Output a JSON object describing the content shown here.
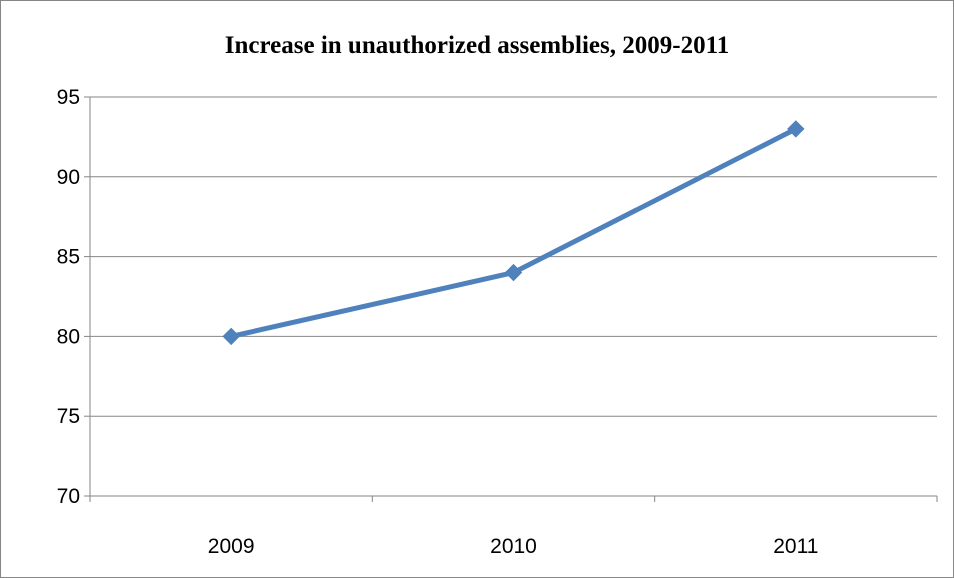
{
  "chart_data": {
    "type": "line",
    "title": "Increase in unauthorized assemblies, 2009-2011",
    "xlabel": "",
    "ylabel": "",
    "categories": [
      "2009",
      "2010",
      "2011"
    ],
    "series": [
      {
        "values": [
          80,
          84,
          93
        ],
        "color": "#4f81bd",
        "marker": "diamond"
      }
    ],
    "ylim": [
      70,
      95
    ],
    "yticks": [
      70,
      75,
      80,
      85,
      90,
      95
    ],
    "ytick_labels": [
      "70",
      "75",
      "80",
      "85",
      "90",
      "95"
    ],
    "grid": "horizontal",
    "legend": "none"
  },
  "colors": {
    "series": "#4f81bd",
    "gridline": "#868686",
    "axis": "#868686",
    "border": "#868686"
  }
}
